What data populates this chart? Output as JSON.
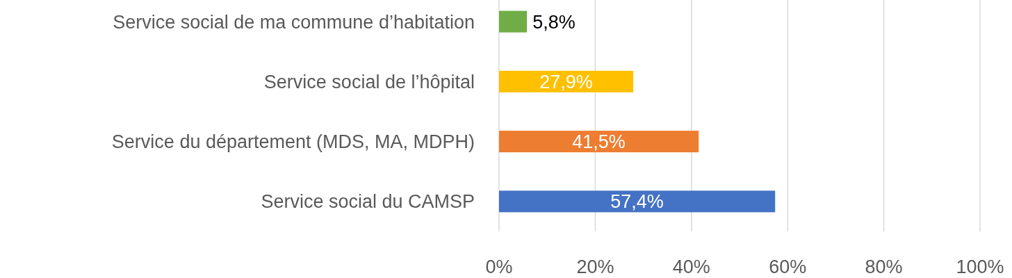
{
  "chart_data": {
    "type": "bar",
    "orientation": "horizontal",
    "categories": [
      "Service social de ma commune d’habitation",
      "Service social de l’hôpital",
      "Service du département (MDS, MA, MDPH)",
      "Service social du CAMSP"
    ],
    "values": [
      5.8,
      27.9,
      41.5,
      57.4
    ],
    "colors": [
      "#70ad47",
      "#ffc000",
      "#ed7d31",
      "#4472c4"
    ],
    "value_labels": [
      "5,8%",
      "27,9%",
      "41,5%",
      "57,4%"
    ],
    "xlim": [
      0,
      100
    ],
    "xticks": [
      {
        "value": 0,
        "label": "0%"
      },
      {
        "value": 20,
        "label": "20%"
      },
      {
        "value": 40,
        "label": "40%"
      },
      {
        "value": 60,
        "label": "60%"
      },
      {
        "value": 80,
        "label": "80%"
      },
      {
        "value": 100,
        "label": "100%"
      }
    ],
    "grid": "x"
  }
}
